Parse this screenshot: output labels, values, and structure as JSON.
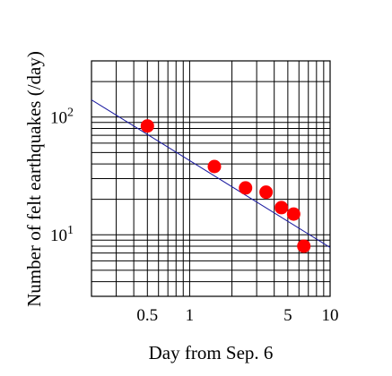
{
  "chart_data": {
    "type": "scatter",
    "xlabel": "Day from Sep. 6",
    "ylabel": "Number of felt earthquakes (/day)",
    "xscale": "log",
    "yscale": "log",
    "xlim": [
      0.2,
      10
    ],
    "ylim": [
      3,
      300
    ],
    "grid": true,
    "x_ticks": [
      {
        "value": 0.5,
        "label": "0.5"
      },
      {
        "value": 1,
        "label": "1"
      },
      {
        "value": 5,
        "label": "5"
      },
      {
        "value": 10,
        "label": "10"
      }
    ],
    "y_ticks": [
      {
        "value": 100,
        "base": "10",
        "exp": "2"
      },
      {
        "value": 10,
        "base": "10",
        "exp": "1"
      }
    ],
    "series": [
      {
        "marker_color": "#ff0000",
        "x": [
          0.5,
          1.5,
          2.5,
          3.5,
          4.5,
          5.5,
          6.5
        ],
        "y": [
          84,
          38,
          25,
          23,
          17,
          15,
          8
        ]
      }
    ],
    "fit_line": {
      "color": "#1a1aa0",
      "x": [
        0.2,
        10
      ],
      "y": [
        140,
        7.8
      ]
    }
  }
}
